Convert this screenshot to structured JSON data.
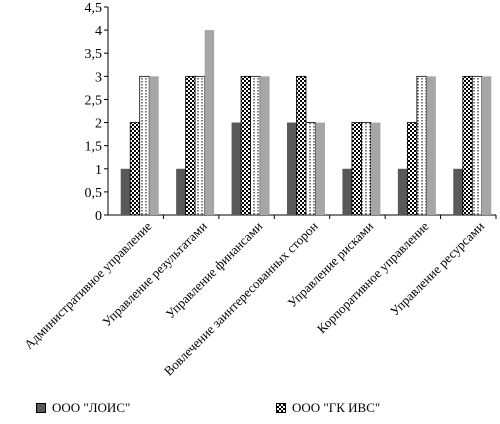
{
  "chart_data": {
    "type": "bar",
    "categories": [
      "Административное управление",
      "Управление результатами",
      "Управление финансами",
      "Вовлечение заинтересованных сторон",
      "Управление рисками",
      "Корпоративное управление",
      "Управление ресурсами"
    ],
    "series": [
      {
        "name": "ООО \"ЛОИС\"",
        "values": [
          1,
          1,
          2,
          2,
          1,
          1,
          1
        ],
        "color": "#595959",
        "pattern": "solid"
      },
      {
        "name": "ООО \"ГК ИВС\"",
        "values": [
          2,
          3,
          3,
          3,
          2,
          2,
          3
        ],
        "color": "#000000",
        "pattern": "checker"
      },
      {
        "name": "",
        "values": [
          3,
          3,
          3,
          2,
          2,
          3,
          3
        ],
        "color": "#ffffff",
        "pattern": "dotted"
      },
      {
        "name": "",
        "values": [
          3,
          4,
          3,
          2,
          2,
          3,
          3
        ],
        "color": "#a6a6a6",
        "pattern": "solid"
      }
    ],
    "yticks": [
      "0",
      "0,5",
      "1",
      "1,5",
      "2",
      "2,5",
      "3",
      "3,5",
      "4",
      "4,5"
    ],
    "ylim": [
      0,
      4.5
    ],
    "title": "",
    "xlabel": "",
    "ylabel": "",
    "grid": false,
    "legend_position": "bottom"
  },
  "legend": [
    {
      "label": "ООО \"ЛОИС\""
    },
    {
      "label": "ООО \"ГК ИВС\""
    }
  ]
}
